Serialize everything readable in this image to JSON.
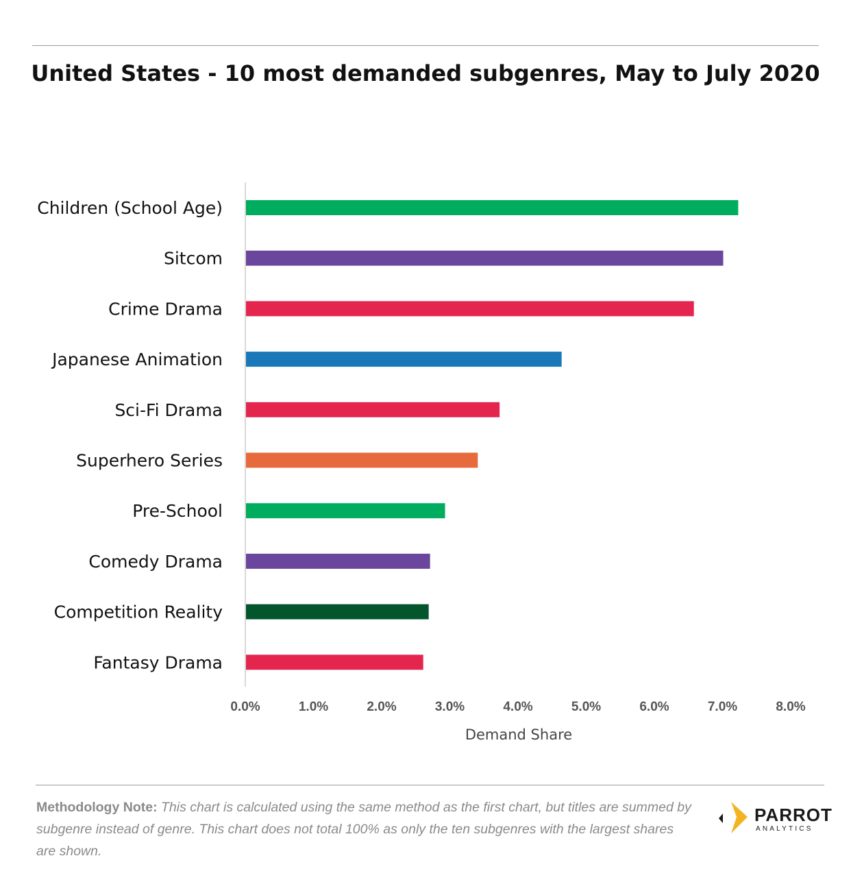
{
  "title": "United States - 10 most demanded subgenres, May to July 2020",
  "chart_data": {
    "type": "bar",
    "orientation": "horizontal",
    "title": "United States - 10 most demanded subgenres, May to July 2020",
    "xlabel": "Demand Share",
    "ylabel": "",
    "xlim": [
      0,
      8
    ],
    "x_ticks": [
      "0.0%",
      "1.0%",
      "2.0%",
      "3.0%",
      "4.0%",
      "5.0%",
      "6.0%",
      "7.0%",
      "8.0%"
    ],
    "categories": [
      "Children (School Age)",
      "Sitcom",
      "Crime Drama",
      "Japanese Animation",
      "Sci-Fi Drama",
      "Superhero Series",
      "Pre-School",
      "Comedy Drama",
      "Competition Reality",
      "Fantasy Drama"
    ],
    "values": [
      7.22,
      7.0,
      6.57,
      4.63,
      3.72,
      3.4,
      2.92,
      2.7,
      2.68,
      2.6
    ],
    "colors": [
      "#00ad5f",
      "#6a469c",
      "#e4264f",
      "#1a78b8",
      "#e4264f",
      "#e66a3c",
      "#00ad5f",
      "#6a469c",
      "#03552c",
      "#e4264f"
    ]
  },
  "methodology": {
    "label": "Methodology Note:",
    "text": "This chart is calculated using the same method as the first chart, but titles are summed by subgenre instead of genre. This chart does not total 100% as only the ten subgenres with the largest shares are shown."
  },
  "logo": {
    "name": "PARROT",
    "subtitle": "ANALYTICS",
    "accent_color": "#f2b423"
  }
}
